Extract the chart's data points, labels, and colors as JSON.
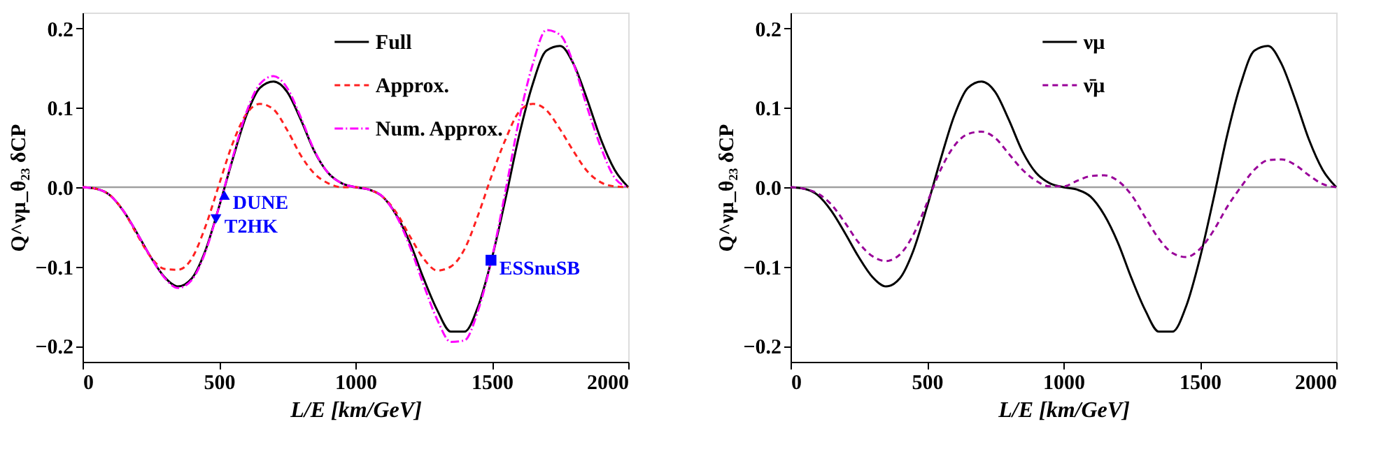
{
  "chart_data": [
    {
      "type": "line",
      "xlabel": "L/E [km/GeV]",
      "ylabel": "Q^νμ_θ₂₃ δCP",
      "xlim": [
        0,
        2000
      ],
      "xticks": [
        0,
        500,
        1000,
        1500,
        2000
      ],
      "ylim": [
        -0.22,
        0.22
      ],
      "yticks": [
        -0.2,
        -0.1,
        {
          "value": 0,
          "label": "0.0"
        },
        0.1,
        0.2
      ],
      "grid": false,
      "legend": "top",
      "ref_lines": [
        {
          "axis": "y",
          "value": 0,
          "color": "#a0a0a0"
        }
      ],
      "x": [
        0,
        50,
        100,
        150,
        200,
        250,
        300,
        350,
        400,
        450,
        500,
        550,
        600,
        650,
        700,
        750,
        800,
        850,
        900,
        950,
        1000,
        1050,
        1100,
        1150,
        1200,
        1250,
        1300,
        1350,
        1400,
        1450,
        1500,
        1550,
        1600,
        1650,
        1700,
        1750,
        1800,
        1850,
        1900,
        1950,
        2000
      ],
      "series": [
        {
          "name": "Full",
          "color": "#000000",
          "line_style": "solid",
          "values": [
            0,
            -0.002,
            -0.01,
            -0.03,
            -0.058,
            -0.088,
            -0.113,
            -0.125,
            -0.115,
            -0.08,
            -0.025,
            0.035,
            0.09,
            0.125,
            0.133,
            0.12,
            0.085,
            0.045,
            0.018,
            0.005,
            0.0,
            -0.003,
            -0.012,
            -0.035,
            -0.07,
            -0.115,
            -0.155,
            -0.182,
            -0.182,
            -0.15,
            -0.09,
            -0.015,
            0.065,
            0.13,
            0.172,
            0.178,
            0.155,
            0.11,
            0.06,
            0.022,
            0
          ]
        },
        {
          "name": "Approx.",
          "color": "#ff2020",
          "line_style": "dashed",
          "values": [
            0,
            -0.002,
            -0.01,
            -0.03,
            -0.06,
            -0.088,
            -0.103,
            -0.104,
            -0.09,
            -0.05,
            0.003,
            0.055,
            0.092,
            0.105,
            0.098,
            0.072,
            0.04,
            0.017,
            0.005,
            0.0,
            0,
            -0.003,
            -0.012,
            -0.032,
            -0.062,
            -0.09,
            -0.105,
            -0.1,
            -0.078,
            -0.035,
            0.015,
            0.06,
            0.095,
            0.105,
            0.097,
            0.073,
            0.045,
            0.02,
            0.006,
            0.001,
            0
          ]
        },
        {
          "name": "Num. Approx.",
          "color": "#ff00ff",
          "line_style": "dashdot",
          "values": [
            0,
            -0.002,
            -0.01,
            -0.03,
            -0.058,
            -0.088,
            -0.114,
            -0.127,
            -0.117,
            -0.082,
            -0.025,
            0.037,
            0.094,
            0.13,
            0.14,
            0.125,
            0.088,
            0.046,
            0.018,
            0.005,
            0,
            -0.003,
            -0.012,
            -0.036,
            -0.075,
            -0.123,
            -0.167,
            -0.195,
            -0.193,
            -0.155,
            -0.09,
            -0.005,
            0.085,
            0.155,
            0.198,
            0.192,
            0.155,
            0.1,
            0.05,
            0.012,
            0
          ]
        },
        {
          "name": "DUNE",
          "type": "scatter",
          "marker": "triangle",
          "color": "#0000ff",
          "x": [
            520
          ],
          "values": [
            -0.01
          ]
        },
        {
          "name": "T2HK",
          "type": "scatter",
          "marker": "triangle-down",
          "color": "#0000ff",
          "x": [
            489
          ],
          "values": [
            -0.04
          ]
        },
        {
          "name": "ESSnuSB",
          "type": "scatter",
          "marker": "square",
          "color": "#0000ff",
          "x": [
            1497
          ],
          "values": [
            -0.092
          ]
        }
      ]
    },
    {
      "type": "line",
      "xlabel": "L/E [km/GeV]",
      "ylabel": "Q^νμ_θ₂₃ δCP",
      "xlim": [
        0,
        2000
      ],
      "xticks": [
        0,
        500,
        1000,
        1500,
        2000
      ],
      "ylim": [
        -0.22,
        0.22
      ],
      "yticks": [
        -0.2,
        -0.1,
        {
          "value": 0,
          "label": "0.0"
        },
        0.1,
        0.2
      ],
      "grid": false,
      "legend": "top",
      "ref_lines": [
        {
          "axis": "y",
          "value": 0,
          "color": "#a0a0a0"
        }
      ],
      "x": [
        0,
        50,
        100,
        150,
        200,
        250,
        300,
        350,
        400,
        450,
        500,
        550,
        600,
        650,
        700,
        750,
        800,
        850,
        900,
        950,
        1000,
        1050,
        1100,
        1150,
        1200,
        1250,
        1300,
        1350,
        1400,
        1450,
        1500,
        1550,
        1600,
        1650,
        1700,
        1750,
        1800,
        1850,
        1900,
        1950,
        2000
      ],
      "series": [
        {
          "name": "νμ",
          "color": "#000000",
          "line_style": "solid",
          "values": [
            0,
            -0.002,
            -0.01,
            -0.03,
            -0.058,
            -0.088,
            -0.113,
            -0.125,
            -0.115,
            -0.08,
            -0.025,
            0.035,
            0.09,
            0.125,
            0.133,
            0.12,
            0.085,
            0.045,
            0.018,
            0.005,
            0.0,
            -0.003,
            -0.012,
            -0.035,
            -0.07,
            -0.115,
            -0.155,
            -0.182,
            -0.182,
            -0.15,
            -0.09,
            -0.015,
            0.065,
            0.13,
            0.172,
            0.178,
            0.155,
            0.11,
            0.06,
            0.022,
            0
          ]
        },
        {
          "name": "ν̄μ",
          "color": "#990099",
          "line_style": "dashed",
          "values": [
            0,
            -0.002,
            -0.008,
            -0.022,
            -0.045,
            -0.07,
            -0.087,
            -0.093,
            -0.085,
            -0.06,
            -0.02,
            0.022,
            0.052,
            0.067,
            0.07,
            0.062,
            0.042,
            0.022,
            0.008,
            0.001,
            0.001,
            0.008,
            0.014,
            0.015,
            0.008,
            -0.01,
            -0.038,
            -0.065,
            -0.083,
            -0.088,
            -0.078,
            -0.055,
            -0.025,
            0.0,
            0.022,
            0.034,
            0.035,
            0.028,
            0.015,
            0.004,
            0
          ]
        }
      ]
    }
  ]
}
